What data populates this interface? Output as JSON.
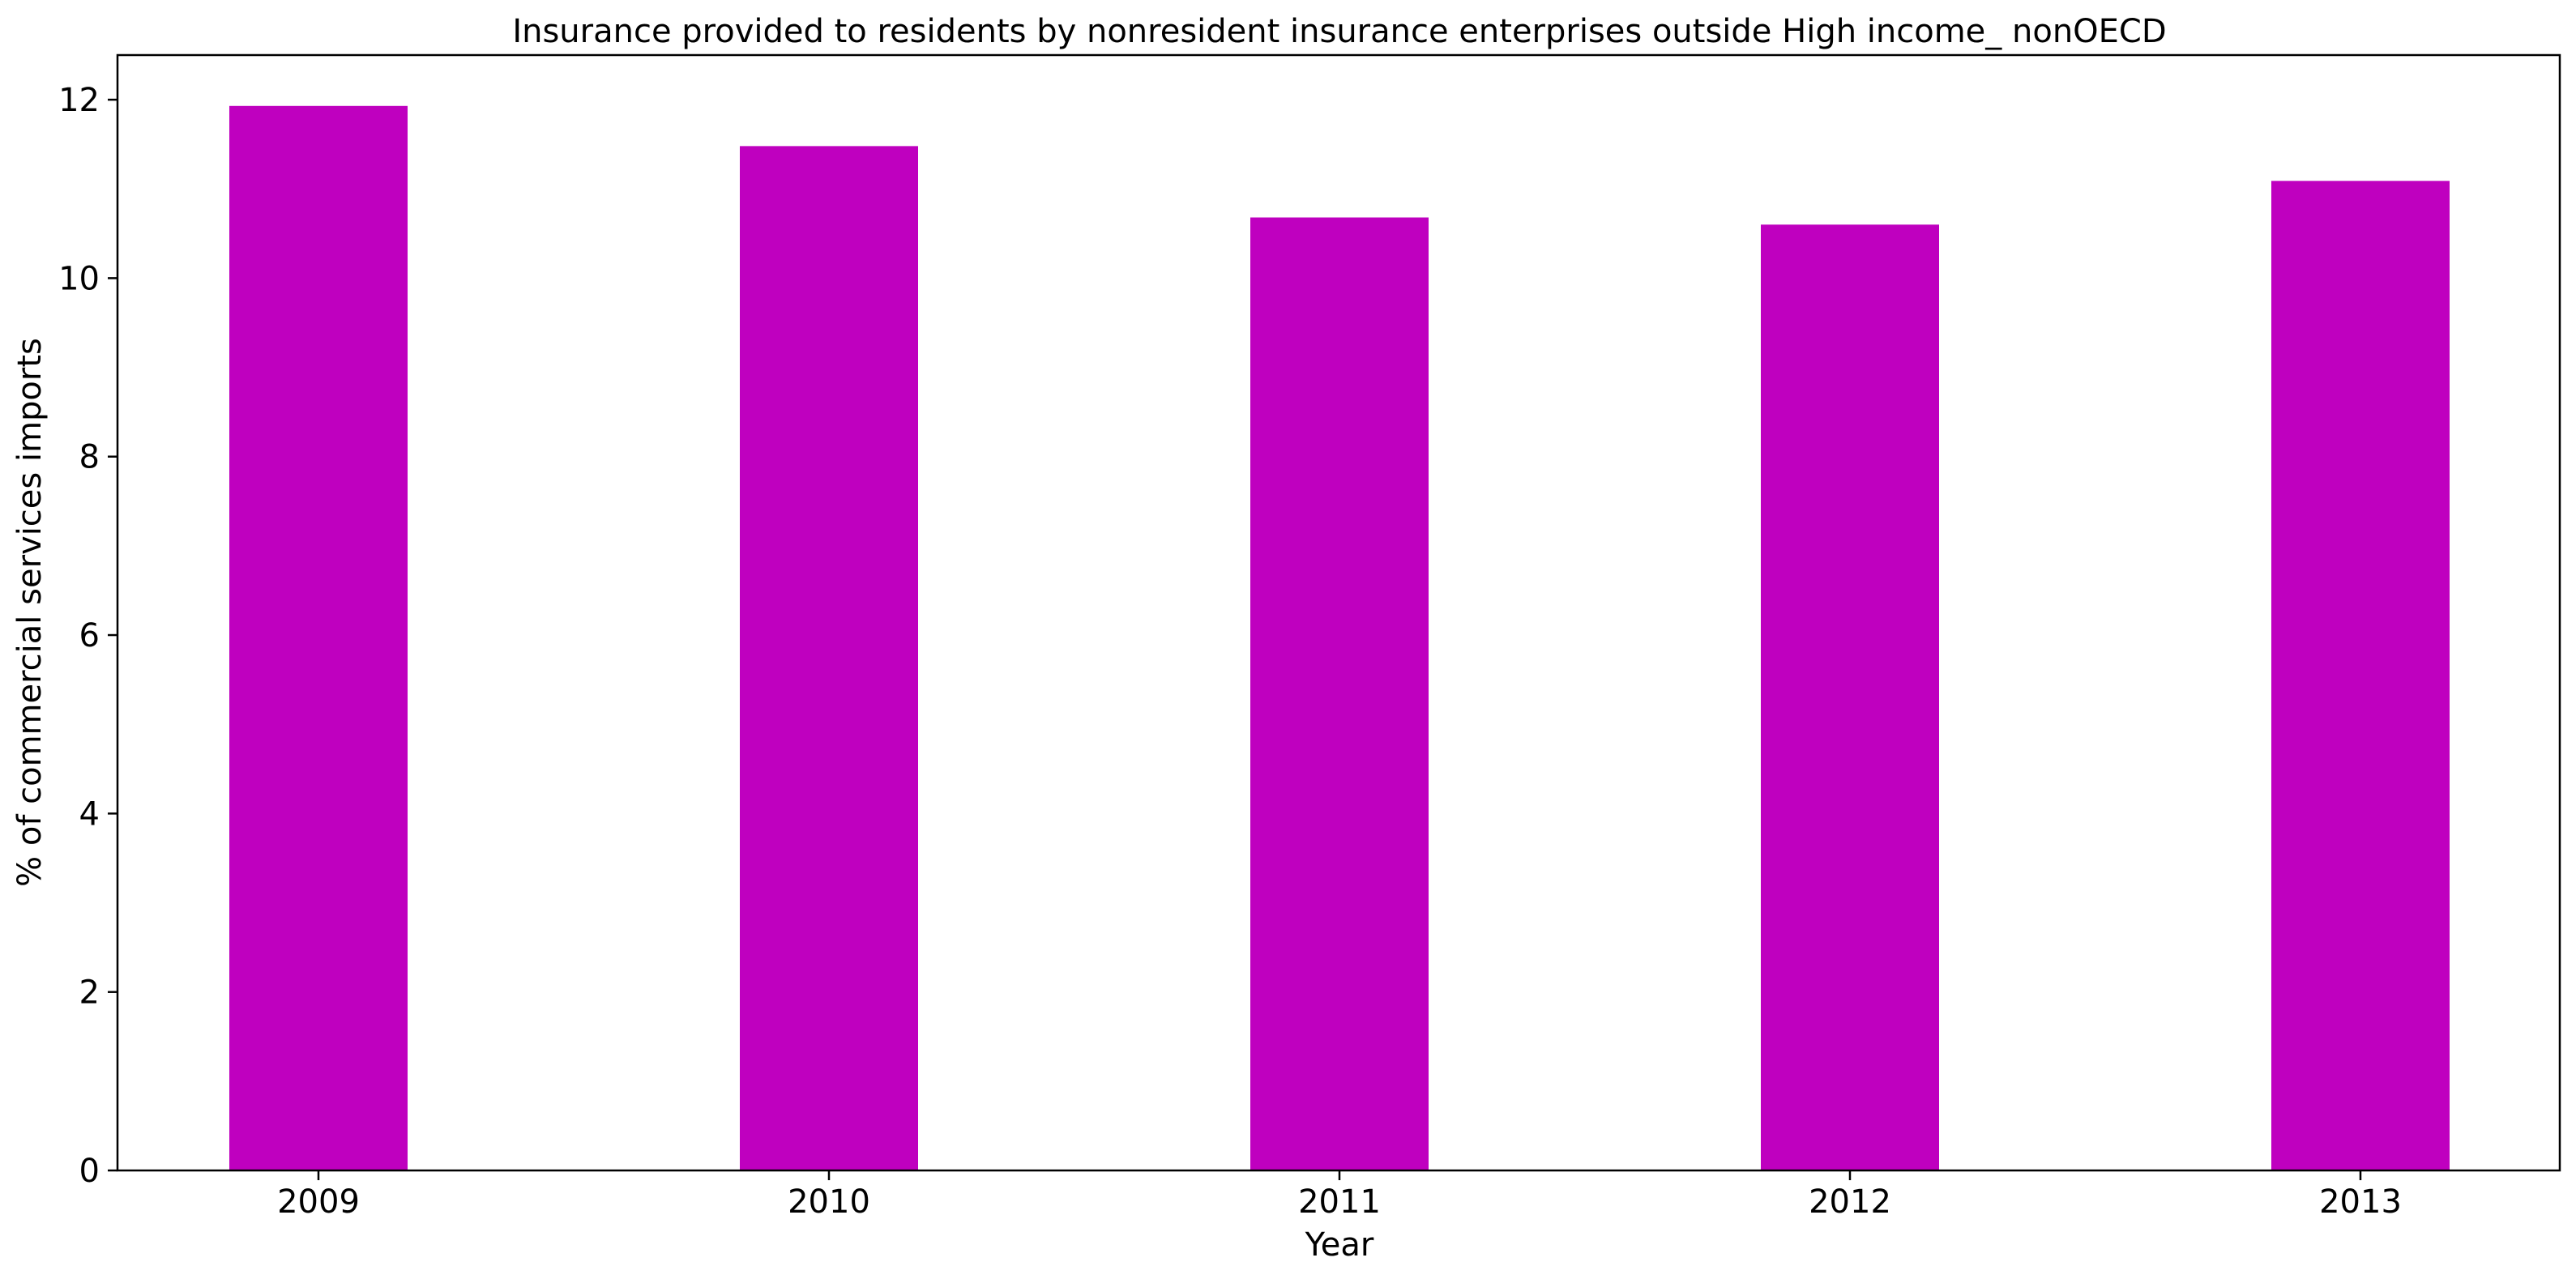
{
  "chart_data": {
    "type": "bar",
    "title": "Insurance provided to residents by nonresident insurance enterprises outside High income_ nonOECD",
    "xlabel": "Year",
    "ylabel": "% of commercial services imports",
    "categories": [
      "2009",
      "2010",
      "2011",
      "2012",
      "2013"
    ],
    "values": [
      11.93,
      11.48,
      10.68,
      10.6,
      11.09
    ],
    "ylim": [
      0,
      12.5
    ],
    "yticks": [
      0,
      2,
      4,
      6,
      8,
      10,
      12
    ],
    "bar_color": "#bf00bf",
    "grid": false,
    "legend": "none"
  }
}
